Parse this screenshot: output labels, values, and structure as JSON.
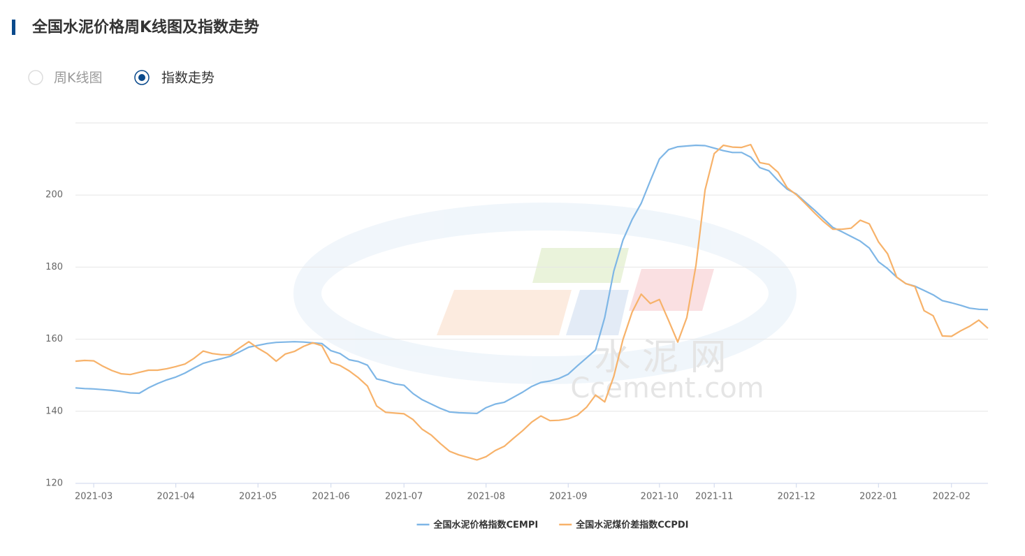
{
  "header": {
    "title": "全国水泥价格周K线图及指数走势"
  },
  "tabs": [
    {
      "label": "周K线图",
      "selected": false
    },
    {
      "label": "指数走势",
      "selected": true
    }
  ],
  "watermark": {
    "name": "水 泥 网",
    "site": "Ccement.com"
  },
  "chart_data": {
    "type": "line",
    "categories": [
      null,
      null,
      "2021-03",
      null,
      null,
      null,
      null,
      null,
      null,
      null,
      null,
      "2021-04",
      null,
      null,
      null,
      null,
      null,
      null,
      null,
      null,
      "2021-05",
      null,
      null,
      null,
      null,
      null,
      null,
      null,
      "2021-06",
      null,
      null,
      null,
      null,
      null,
      null,
      null,
      "2021-07",
      null,
      null,
      null,
      null,
      null,
      null,
      null,
      null,
      "2021-08",
      null,
      null,
      null,
      null,
      null,
      null,
      null,
      null,
      "2021-09",
      null,
      null,
      null,
      null,
      null,
      null,
      null,
      null,
      null,
      "2021-10",
      null,
      null,
      null,
      null,
      null,
      "2021-11",
      null,
      null,
      null,
      null,
      null,
      null,
      null,
      null,
      "2021-12",
      null,
      null,
      null,
      null,
      null,
      null,
      null,
      null,
      "2022-01",
      null,
      null,
      null,
      null,
      null,
      null,
      null,
      "2022-02",
      null,
      null,
      null,
      null
    ],
    "series": [
      {
        "name": "全国水泥价格指数CEMPI",
        "color": "#7eb6e6",
        "values": [
          146.5,
          146.3,
          146.2,
          146.0,
          145.8,
          145.5,
          145.1,
          145.0,
          146.5,
          147.7,
          148.7,
          149.5,
          150.6,
          152.0,
          153.3,
          154.0,
          154.6,
          155.3,
          156.5,
          157.8,
          158.3,
          158.8,
          159.1,
          159.2,
          159.3,
          159.2,
          159.0,
          158.8,
          156.8,
          156.0,
          154.3,
          153.8,
          152.8,
          149.0,
          148.4,
          147.6,
          147.2,
          144.9,
          143.2,
          142.0,
          140.8,
          139.8,
          139.6,
          139.5,
          139.4,
          141.0,
          142.0,
          142.5,
          143.9,
          145.3,
          146.9,
          148.0,
          148.4,
          149.1,
          150.3,
          152.6,
          154.8,
          157.0,
          166.0,
          178.9,
          187.5,
          193.2,
          197.7,
          204.0,
          210.0,
          212.6,
          213.4,
          213.6,
          213.8,
          213.7,
          213.0,
          212.3,
          211.8,
          211.8,
          210.5,
          207.6,
          206.7,
          204.0,
          201.6,
          200.3,
          198.0,
          195.8,
          193.4,
          191.0,
          189.8,
          188.5,
          187.2,
          185.3,
          181.5,
          179.6,
          177.2,
          175.4,
          174.7,
          173.5,
          172.3,
          170.7,
          170.1,
          169.4,
          168.6,
          168.3,
          168.2
        ]
      },
      {
        "name": "全国水泥煤价差指数CCPDI",
        "color": "#f7b26a",
        "values": [
          153.9,
          154.1,
          154.0,
          152.5,
          151.3,
          150.4,
          150.2,
          150.8,
          151.4,
          151.4,
          151.8,
          152.4,
          153.1,
          154.7,
          156.7,
          156.0,
          155.7,
          155.7,
          157.6,
          159.3,
          157.5,
          156.0,
          153.9,
          155.9,
          156.6,
          158.0,
          159.0,
          158.2,
          153.5,
          152.7,
          151.2,
          149.3,
          147.0,
          141.5,
          139.7,
          139.5,
          139.3,
          137.7,
          135.0,
          133.4,
          131.0,
          128.9,
          127.9,
          127.2,
          126.5,
          127.4,
          129.1,
          130.3,
          132.5,
          134.6,
          137.0,
          138.7,
          137.4,
          137.5,
          137.9,
          138.9,
          141.1,
          144.5,
          142.6,
          149.7,
          159.9,
          167.5,
          172.5,
          169.9,
          171.0,
          165.2,
          159.2,
          166.0,
          180.5,
          201.4,
          211.5,
          213.8,
          213.3,
          213.2,
          214.0,
          209.0,
          208.5,
          206.3,
          202.0,
          200.1,
          197.6,
          195.0,
          192.6,
          190.5,
          190.5,
          190.8,
          193.0,
          192.0,
          187.0,
          183.7,
          177.2,
          175.4,
          174.6,
          167.9,
          166.5,
          160.9,
          160.8,
          162.3,
          163.6,
          165.3,
          163.0
        ]
      }
    ],
    "ylim": [
      120,
      220
    ],
    "yticks": [
      120,
      140,
      160,
      180,
      200
    ],
    "grid": true,
    "legend": "bottom"
  }
}
